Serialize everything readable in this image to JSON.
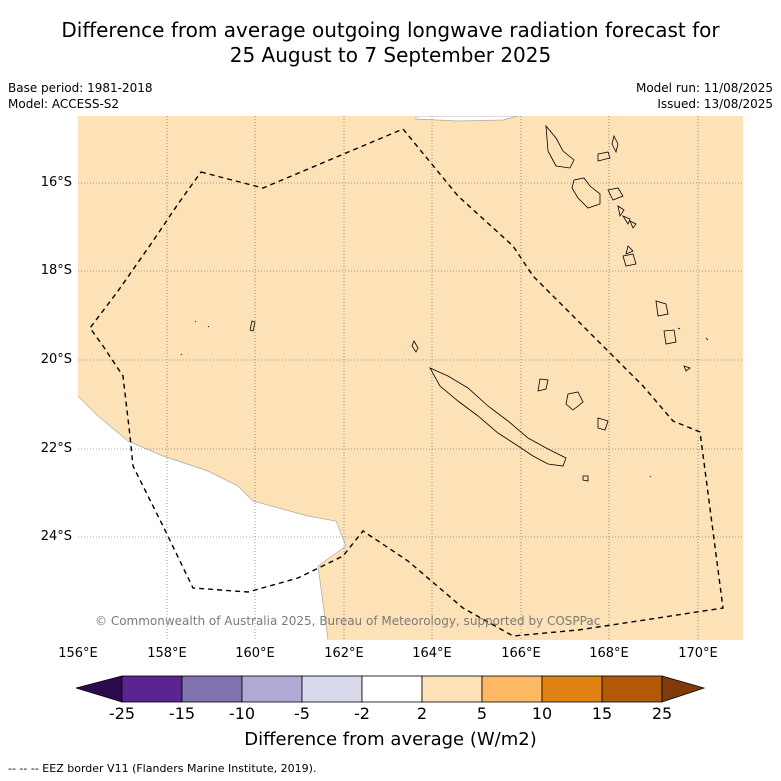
{
  "title": {
    "line1": "Difference from average outgoing longwave radiation forecast for",
    "line2": "25 August to 7 September 2025"
  },
  "meta": {
    "base_period": "Base period: 1981-2018",
    "model": "Model: ACCESS-S2",
    "model_run": "Model run: 11/08/2025",
    "issued": "Issued: 13/08/2025"
  },
  "map": {
    "fill_color": "#fde2b8",
    "copyright": "© Commonwealth of Australia 2025, Bureau of Meteorology, supported by COSPPac",
    "x_ticks": [
      "156°E",
      "158°E",
      "160°E",
      "162°E",
      "164°E",
      "166°E",
      "168°E",
      "170°E"
    ],
    "y_ticks": [
      "16°S",
      "18°S",
      "20°S",
      "22°S",
      "24°S"
    ]
  },
  "colorbar": {
    "label": "Difference from average (W/m2)",
    "ticks": [
      "-25",
      "-15",
      "-10",
      "-5",
      "-2",
      "2",
      "5",
      "10",
      "15",
      "25"
    ],
    "colors": [
      "#2d0a4e",
      "#5a2590",
      "#8173b0",
      "#b1a9d4",
      "#d9d9ec",
      "#ffffff",
      "#fde2b8",
      "#fdb863",
      "#e08214",
      "#b35806",
      "#7f3b08"
    ]
  },
  "footnote": "-- -- -- EEZ border V11 (Flanders Marine Institute, 2019)."
}
